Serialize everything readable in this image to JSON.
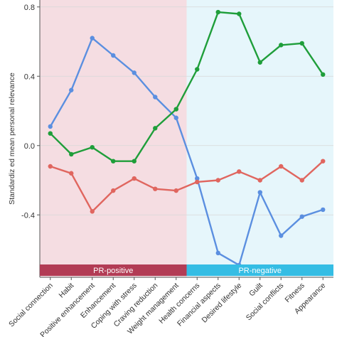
{
  "chart_data": {
    "type": "line",
    "ylabel": "Standardiz ed mean personal relevance",
    "ylim": [
      -0.76,
      0.84
    ],
    "yticks": [
      0.8,
      0.4,
      0.0,
      -0.4
    ],
    "ytick_labels": [
      "0.8",
      "0.4",
      "0.0",
      "-0.4"
    ],
    "categories": [
      "Social connection",
      "Habit",
      "Positive enhancement",
      "Enhancement",
      "Coping with stress",
      "Craving reduction",
      "Weight management",
      "Health concerns",
      "Financial aspects",
      "Desired lifestyle",
      "Guilt",
      "Social conflicts",
      "Fitness",
      "Appearance"
    ],
    "groups": [
      {
        "label": "PR-positive",
        "from": 0,
        "to": 7,
        "band_color": "#f5dde2",
        "bar_color": "#b23c55"
      },
      {
        "label": "PR-negative",
        "from": 7,
        "to": 14,
        "band_color": "#e6f6fb",
        "bar_color": "#35bde4"
      }
    ],
    "series": [
      {
        "color": "#5b8fe0",
        "values": [
          0.11,
          0.32,
          0.62,
          0.52,
          0.42,
          0.28,
          0.16,
          -0.19,
          -0.62,
          -0.69,
          -0.27,
          -0.52,
          -0.41,
          -0.37
        ]
      },
      {
        "color": "#1f9e3a",
        "values": [
          0.07,
          -0.05,
          -0.01,
          -0.09,
          -0.09,
          0.1,
          0.21,
          0.44,
          0.77,
          0.76,
          0.48,
          0.58,
          0.59,
          0.41
        ]
      },
      {
        "color": "#e0665f",
        "values": [
          -0.12,
          -0.16,
          -0.38,
          -0.26,
          -0.19,
          -0.25,
          -0.26,
          -0.21,
          -0.2,
          -0.15,
          -0.2,
          -0.12,
          -0.2,
          -0.09
        ]
      }
    ]
  }
}
